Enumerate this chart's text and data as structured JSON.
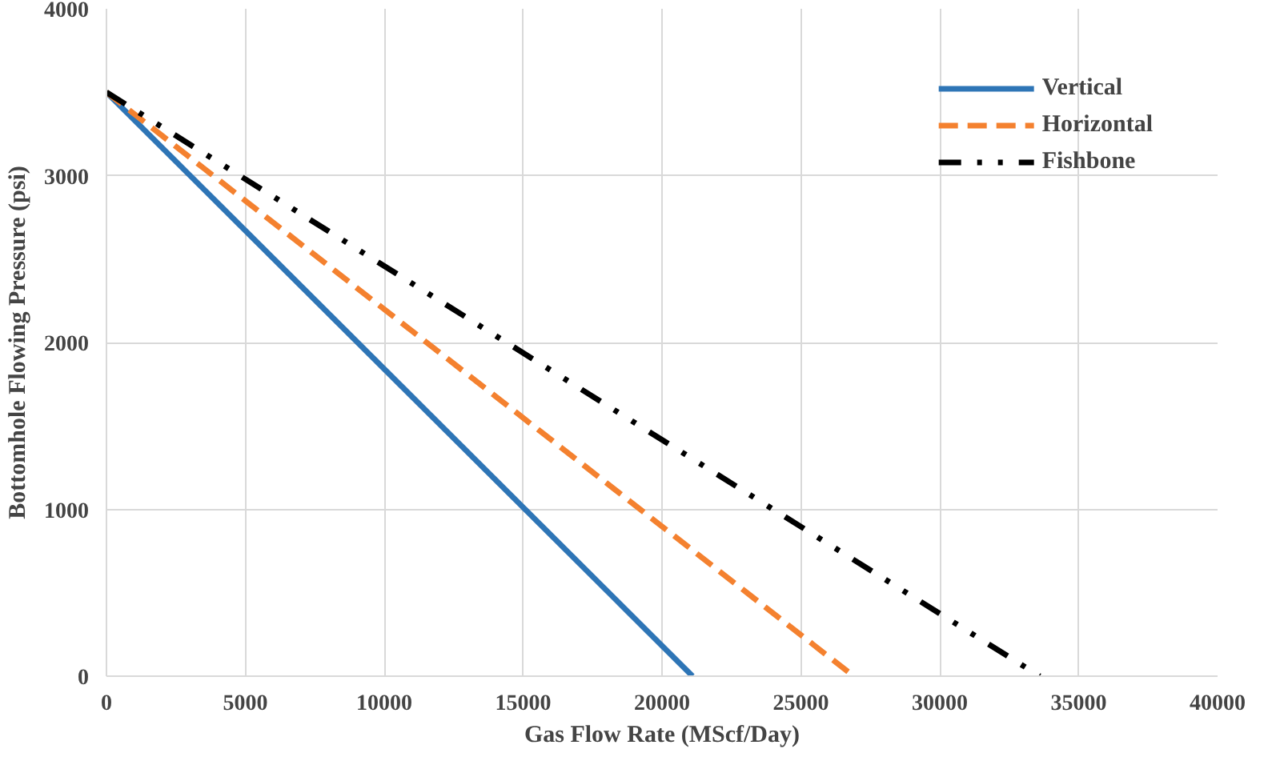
{
  "chart_data": {
    "type": "line",
    "xlabel": "Gas Flow Rate (MScf/Day)",
    "ylabel": "Bottomhole Flowing Pressure (psi)",
    "xlim": [
      0,
      40000
    ],
    "xticks": [
      0,
      5000,
      10000,
      15000,
      20000,
      25000,
      30000,
      35000,
      40000
    ],
    "ylim": [
      0,
      4000
    ],
    "yticks": [
      0,
      1000,
      2000,
      3000,
      4000
    ],
    "grid": true,
    "legend": "top right",
    "marker": "none",
    "series": [
      {
        "name": "Vertical",
        "color": "#2e75b6",
        "line_style": "solid",
        "x": [
          0,
          21100
        ],
        "values": [
          3500,
          0
        ]
      },
      {
        "name": "Horizontal",
        "color": "#f4812f",
        "line_style": "dashed",
        "x": [
          0,
          26900
        ],
        "values": [
          3500,
          0
        ]
      },
      {
        "name": "Fishbone",
        "color": "#000000",
        "line_style": "dashdotdot",
        "x": [
          0,
          33600
        ],
        "values": [
          3500,
          0
        ]
      }
    ]
  }
}
